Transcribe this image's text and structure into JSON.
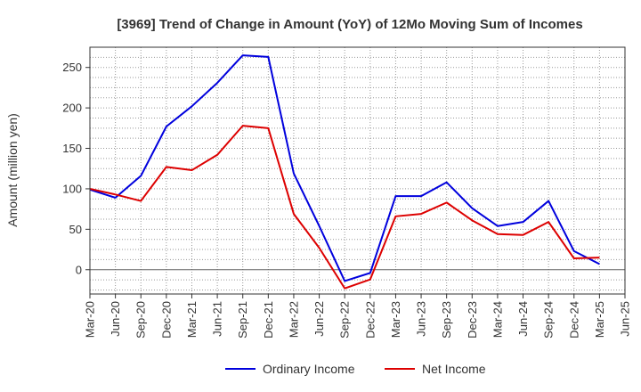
{
  "chart_data": {
    "type": "line",
    "title": "[3969]  Trend of Change in Amount (YoY) of 12Mo Moving Sum of Incomes",
    "ylabel": "Amount (million yen)",
    "xlabel": "",
    "ylim": [
      -30,
      275
    ],
    "yticks": [
      0,
      50,
      100,
      150,
      200,
      250
    ],
    "grid": true,
    "legend_position": "bottom",
    "categories": [
      "Mar-20",
      "Jun-20",
      "Sep-20",
      "Dec-20",
      "Mar-21",
      "Jun-21",
      "Sep-21",
      "Dec-21",
      "Mar-22",
      "Jun-22",
      "Sep-22",
      "Dec-22",
      "Mar-23",
      "Jun-23",
      "Sep-23",
      "Dec-23",
      "Mar-24",
      "Jun-24",
      "Sep-24",
      "Dec-24",
      "Mar-25",
      "Jun-25"
    ],
    "series": [
      {
        "name": "Ordinary Income",
        "color": "#0000dd",
        "values": [
          99,
          89,
          116,
          177,
          202,
          231,
          265,
          263,
          119,
          54,
          -14,
          -4,
          91,
          91,
          108,
          76,
          54,
          59,
          85,
          23,
          7,
          null
        ]
      },
      {
        "name": "Net Income",
        "color": "#dd0000",
        "values": [
          100,
          93,
          85,
          127,
          123,
          142,
          178,
          175,
          69,
          27,
          -23,
          -12,
          66,
          69,
          83,
          61,
          44,
          43,
          59,
          14,
          15,
          null
        ]
      }
    ]
  }
}
